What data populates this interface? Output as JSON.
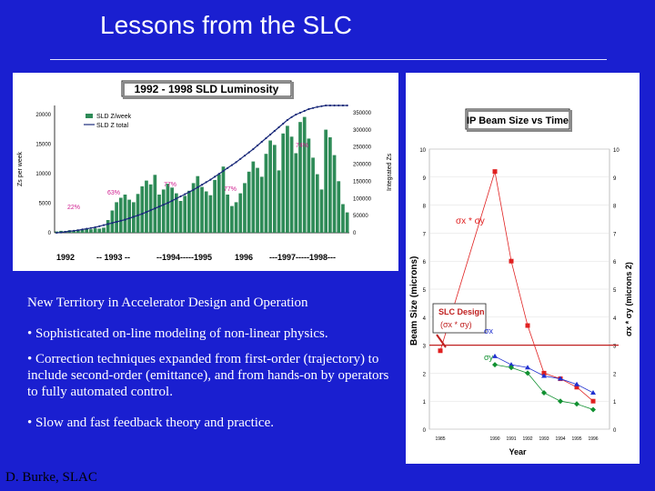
{
  "slide": {
    "title": "Lessons from the SLC",
    "footer": "D. Burke, SLAC",
    "heading": "New Territory in Accelerator Design and Operation",
    "bullets": [
      "•  Sophisticated on-line modeling of non-linear physics.",
      "•  Correction techniques expanded from first-order (trajectory) to include second-order (emittance),  and from hands-on by operators to fully automated control.",
      "•  Slow and fast feedback theory and practice."
    ]
  },
  "chart_data": [
    {
      "type": "bar",
      "title": "1992 - 1998 SLD Luminosity",
      "ylabel": "Zs per week",
      "y2label": "Integrated Zs",
      "legend": [
        "SLD Z/week",
        "SLD Z total"
      ],
      "yticks": [
        "20000",
        "15000",
        "10000",
        "5000",
        "0"
      ],
      "y2ticks": [
        "350000",
        "300000",
        "250000",
        "200000",
        "150000",
        "100000",
        "50000",
        "0"
      ],
      "ylim": [
        0,
        20000
      ],
      "y2lim": [
        0,
        350000
      ],
      "year_labels": [
        "1992",
        "-- 1993 --",
        "--1994-----1995",
        "1996",
        "---1997-----1998---"
      ],
      "percent_labels": [
        "22%",
        "63%",
        "77%",
        "77%",
        "74%"
      ],
      "legend_position": "top-left",
      "weekly_z": [
        200,
        300,
        250,
        400,
        350,
        500,
        450,
        600,
        550,
        700,
        650,
        800,
        2000,
        3500,
        4800,
        5500,
        6000,
        5200,
        4800,
        6100,
        7300,
        8200,
        7600,
        9100,
        6000,
        6800,
        7700,
        7100,
        6200,
        5000,
        5800,
        6600,
        7800,
        8900,
        7200,
        6500,
        5900,
        8300,
        9200,
        10400,
        6000,
        4200,
        4800,
        6200,
        7800,
        9600,
        11200,
        10200,
        8800,
        12400,
        14500,
        13800,
        9800,
        15600,
        16800,
        15100,
        12500,
        17400,
        18200,
        14800,
        11800,
        9200,
        6800,
        16200,
        15000,
        12200,
        8100,
        4500,
        3200
      ],
      "cumulative_z": [
        0,
        1000,
        2500,
        4000,
        5500,
        7000,
        9000,
        11000,
        13000,
        15000,
        18000,
        21000,
        24000,
        27000,
        30000,
        33000,
        36000,
        40000,
        44000,
        48000,
        52000,
        57000,
        62000,
        67000,
        72000,
        77000,
        82000,
        88000,
        94000,
        100000,
        106000,
        112000,
        118000,
        125000,
        132000,
        139000,
        146000,
        154000,
        162000,
        170000,
        178000,
        186000,
        194000,
        203000,
        212000,
        221000,
        230000,
        240000,
        250000,
        260000,
        270000,
        280000,
        290000,
        300000,
        310000,
        318000,
        325000,
        330000,
        335000,
        340000,
        343000,
        346000,
        348000,
        350000,
        350000,
        350000,
        350000,
        350000,
        350000
      ]
    },
    {
      "type": "scatter",
      "title": "IP Beam Size vs Time",
      "xlabel": "Year",
      "ylabel": "Beam Size (microns)",
      "y2label": "σx * σy (microns 2)",
      "xticks": [
        "1985",
        "1990",
        "1991",
        "1992",
        "1993",
        "1994",
        "1995",
        "1996"
      ],
      "ylim": [
        0,
        10
      ],
      "yticks": [
        "10",
        "9",
        "8",
        "7",
        "6",
        "5",
        "4",
        "3",
        "2",
        "1",
        "0"
      ],
      "annotations": [
        "σx * σy",
        "SLC Design",
        "(σx * σy)",
        "σx",
        "σy"
      ],
      "series": [
        {
          "name": "σx * σy",
          "color": "#e02020",
          "x": [
            1985,
            1990,
            1991,
            1992,
            1993,
            1994,
            1995,
            1996
          ],
          "y": [
            2.8,
            9.2,
            6.0,
            3.7,
            2.0,
            1.8,
            1.5,
            1.0
          ]
        },
        {
          "name": "σx",
          "color": "#2030d0",
          "x": [
            1990,
            1991,
            1992,
            1993,
            1994,
            1995,
            1996
          ],
          "y": [
            2.6,
            2.3,
            2.2,
            1.9,
            1.8,
            1.6,
            1.3
          ]
        },
        {
          "name": "σy",
          "color": "#109030",
          "x": [
            1990,
            1991,
            1992,
            1993,
            1994,
            1995,
            1996
          ],
          "y": [
            2.3,
            2.2,
            2.0,
            1.3,
            1.0,
            0.9,
            0.7
          ]
        }
      ],
      "design_line": 3.0,
      "design_point": {
        "x": 1985,
        "y": 2.8
      }
    }
  ]
}
